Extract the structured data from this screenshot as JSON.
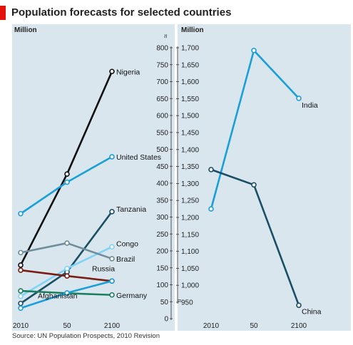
{
  "title": "Population forecasts for selected countries",
  "source": "Source: UN Population Prospects, 2010 Revision",
  "colors": {
    "accent": "#e3120b",
    "panel": "#d9e6ee",
    "black": "#111111",
    "blue": "#1a9fd9",
    "light_blue": "#7fd3f7",
    "dark_teal": "#1b4f66",
    "grey_blue": "#6f8e9c",
    "red_brown": "#7a1d12",
    "green": "#1a7f5c"
  },
  "chart_data": [
    {
      "type": "line",
      "unit_label": "Million",
      "categories": [
        "2010",
        "50",
        "2100"
      ],
      "ylim": [
        0,
        800
      ],
      "yticks": [
        0,
        50,
        100,
        150,
        200,
        250,
        300,
        350,
        400,
        450,
        500,
        550,
        600,
        650,
        700,
        750,
        800
      ],
      "axis_side": "right",
      "axis_break_symbol": "≈",
      "series": [
        {
          "name": "Nigeria",
          "values": [
            158,
            427,
            730
          ],
          "color": "#111111"
        },
        {
          "name": "United States",
          "values": [
            310,
            403,
            478
          ],
          "color": "#1a9fd9"
        },
        {
          "name": "Tanzania",
          "values": [
            45,
            138,
            316
          ],
          "color": "#1b4f66"
        },
        {
          "name": "Congo",
          "values": [
            66,
            148,
            212
          ],
          "color": "#7fd3f7"
        },
        {
          "name": "Brazil",
          "values": [
            195,
            223,
            177
          ],
          "color": "#6f8e9c"
        },
        {
          "name": "Russia",
          "values": [
            143,
            126,
            111
          ],
          "color": "#7a1d12"
        },
        {
          "name": "Germany",
          "values": [
            82,
            75,
            70
          ],
          "color": "#1a7f5c"
        },
        {
          "name": "Afghanistan",
          "values": [
            31,
            76,
            111
          ],
          "color": "#1a9fd9"
        }
      ]
    },
    {
      "type": "line",
      "unit_label": "Million",
      "categories": [
        "2010",
        "50",
        "2100"
      ],
      "ylim": [
        950,
        1700
      ],
      "yticks": [
        950,
        1000,
        1050,
        1100,
        1150,
        1200,
        1250,
        1300,
        1350,
        1400,
        1450,
        1500,
        1550,
        1600,
        1650,
        1700
      ],
      "axis_side": "left",
      "axis_break_symbol": "≈",
      "series": [
        {
          "name": "India",
          "values": [
            1225,
            1692,
            1551
          ],
          "color": "#1a9fd9"
        },
        {
          "name": "China",
          "values": [
            1341,
            1296,
            941
          ],
          "color": "#1b4f66"
        }
      ]
    }
  ]
}
